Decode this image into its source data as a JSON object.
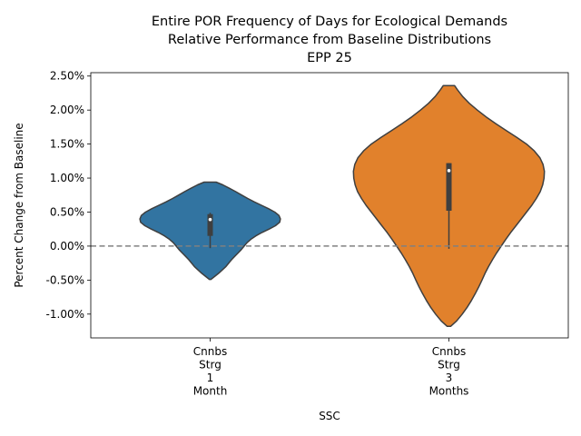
{
  "chart_data": {
    "type": "violin",
    "title_lines": [
      "Entire POR Frequency of Days for Ecological Demands",
      "Relative Performance from Baseline Distributions",
      "EPP 25"
    ],
    "xlabel": "SSC",
    "ylabel": "Percent Change from Baseline",
    "ylim": [
      -0.0135,
      0.0255
    ],
    "yticks": [
      -0.01,
      -0.005,
      0.0,
      0.005,
      0.01,
      0.015,
      0.02,
      0.025
    ],
    "ytick_labels": [
      "-1.00%",
      "-0.50%",
      "0.00%",
      "0.50%",
      "1.00%",
      "1.50%",
      "2.00%",
      "2.50%"
    ],
    "reference_line": {
      "y": 0.0,
      "style": "dashed",
      "color": "#808080"
    },
    "grid": false,
    "legend": "none",
    "categories": [
      {
        "label_lines": [
          "Cnnbs",
          "Strg",
          "1",
          "Month"
        ],
        "color": "#3274a1",
        "min": -0.0049,
        "max": 0.0094,
        "q1": 0.0015,
        "median": 0.0039,
        "q3": 0.0047,
        "whisker_low": -0.0003,
        "whisker_high": 0.0049,
        "profile": [
          [
            -0.0049,
            0.02
          ],
          [
            -0.0045,
            0.12
          ],
          [
            -0.004,
            0.24
          ],
          [
            -0.0035,
            0.35
          ],
          [
            -0.003,
            0.45
          ],
          [
            -0.0025,
            0.53
          ],
          [
            -0.002,
            0.61
          ],
          [
            -0.0015,
            0.7
          ],
          [
            -0.001,
            0.8
          ],
          [
            -0.0005,
            0.89
          ],
          [
            0.0,
            0.97
          ],
          [
            0.0005,
            1.05
          ],
          [
            0.001,
            1.16
          ],
          [
            0.0015,
            1.3
          ],
          [
            0.002,
            1.48
          ],
          [
            0.0025,
            1.68
          ],
          [
            0.003,
            1.86
          ],
          [
            0.0035,
            1.98
          ],
          [
            0.004,
            2.0
          ],
          [
            0.0045,
            1.96
          ],
          [
            0.005,
            1.84
          ],
          [
            0.0055,
            1.66
          ],
          [
            0.006,
            1.46
          ],
          [
            0.0065,
            1.26
          ],
          [
            0.007,
            1.07
          ],
          [
            0.0075,
            0.9
          ],
          [
            0.008,
            0.73
          ],
          [
            0.0085,
            0.55
          ],
          [
            0.009,
            0.36
          ],
          [
            0.0094,
            0.17
          ]
        ]
      },
      {
        "label_lines": [
          "Cnnbs",
          "Strg",
          "3",
          "Months"
        ],
        "color": "#e1812c",
        "min": -0.0118,
        "max": 0.0236,
        "q1": 0.0052,
        "median": 0.0111,
        "q3": 0.0122,
        "whisker_low": -0.0004,
        "whisker_high": 0.0122,
        "profile": [
          [
            -0.0118,
            0.05
          ],
          [
            -0.011,
            0.22
          ],
          [
            -0.01,
            0.38
          ],
          [
            -0.009,
            0.52
          ],
          [
            -0.008,
            0.64
          ],
          [
            -0.007,
            0.75
          ],
          [
            -0.006,
            0.85
          ],
          [
            -0.005,
            0.94
          ],
          [
            -0.004,
            1.03
          ],
          [
            -0.003,
            1.13
          ],
          [
            -0.002,
            1.24
          ],
          [
            -0.001,
            1.36
          ],
          [
            0.0,
            1.49
          ],
          [
            0.001,
            1.62
          ],
          [
            0.002,
            1.76
          ],
          [
            0.003,
            1.91
          ],
          [
            0.004,
            2.06
          ],
          [
            0.005,
            2.21
          ],
          [
            0.006,
            2.36
          ],
          [
            0.007,
            2.49
          ],
          [
            0.008,
            2.6
          ],
          [
            0.009,
            2.67
          ],
          [
            0.01,
            2.71
          ],
          [
            0.011,
            2.72
          ],
          [
            0.012,
            2.68
          ],
          [
            0.013,
            2.59
          ],
          [
            0.014,
            2.43
          ],
          [
            0.015,
            2.21
          ],
          [
            0.016,
            1.93
          ],
          [
            0.017,
            1.63
          ],
          [
            0.018,
            1.34
          ],
          [
            0.019,
            1.06
          ],
          [
            0.02,
            0.81
          ],
          [
            0.021,
            0.58
          ],
          [
            0.022,
            0.39
          ],
          [
            0.023,
            0.24
          ],
          [
            0.0236,
            0.16
          ]
        ]
      }
    ]
  }
}
